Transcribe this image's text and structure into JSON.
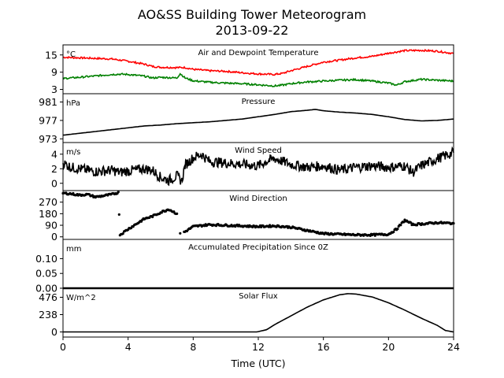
{
  "figure": {
    "title_line1": "AO&SS Building Tower Meteorogram",
    "title_line2": "2013-09-22",
    "xlabel": "Time (UTC)",
    "xticks": [
      0,
      4,
      8,
      12,
      16,
      20,
      24
    ],
    "xlim": [
      0,
      24
    ]
  },
  "chart_data": [
    {
      "type": "line",
      "title": "Air and Dewpoint Temperature",
      "unit": "°C",
      "ylim": [
        1.5,
        18.5
      ],
      "yticks": [
        3,
        9,
        15
      ],
      "series": [
        {
          "color": "#ff0000",
          "x": [
            0,
            1,
            2,
            3,
            3.5,
            4,
            5,
            5.5,
            6,
            7,
            7.5,
            8,
            9,
            10,
            11,
            12,
            13,
            13.5,
            14,
            15,
            16,
            17,
            18,
            19,
            20,
            21,
            22,
            23,
            24
          ],
          "y": [
            14.2,
            14,
            13.8,
            13.6,
            13.2,
            12.8,
            11.8,
            11,
            10.7,
            10.6,
            10.6,
            10,
            9.5,
            9.3,
            8.8,
            8.4,
            8.2,
            8.6,
            9.5,
            11,
            12.5,
            13.2,
            14,
            14.5,
            15.6,
            16.5,
            16.6,
            16.3,
            15.5
          ]
        },
        {
          "color": "#008000",
          "x": [
            0,
            1,
            2,
            3,
            3.5,
            4,
            5,
            5.5,
            6,
            7,
            7.2,
            7.5,
            8,
            9,
            10,
            11,
            12,
            13,
            13.5,
            14,
            15,
            16,
            17,
            18,
            19,
            20,
            20.5,
            21,
            22,
            23,
            24
          ],
          "y": [
            6.8,
            7.2,
            7.7,
            8.2,
            8.3,
            8.2,
            7.6,
            7,
            7.2,
            7,
            8.5,
            7,
            6,
            5.5,
            5.2,
            5,
            4.6,
            4.2,
            4.5,
            5,
            5.6,
            5.9,
            6.2,
            6.4,
            5.9,
            5.2,
            4.5,
            5.7,
            6.5,
            6.2,
            5.9
          ]
        }
      ]
    },
    {
      "type": "line",
      "title": "Pressure",
      "unit": "hPa",
      "ylim": [
        972.2,
        982.8
      ],
      "yticks": [
        973,
        977,
        981
      ],
      "series": [
        {
          "color": "#000000",
          "x": [
            0,
            1,
            2,
            3,
            4,
            5,
            6,
            7,
            8,
            9,
            10,
            11,
            12,
            13,
            14,
            15,
            15.5,
            16,
            17,
            18,
            19,
            20,
            21,
            22,
            23,
            24
          ],
          "y": [
            973.8,
            974.2,
            974.6,
            975,
            975.4,
            975.8,
            976,
            976.3,
            976.5,
            976.7,
            977,
            977.3,
            977.8,
            978.3,
            978.9,
            979.2,
            979.4,
            979.1,
            978.8,
            978.6,
            978.3,
            977.8,
            977.2,
            976.9,
            977,
            977.3
          ]
        }
      ]
    },
    {
      "type": "line",
      "title": "Wind Speed",
      "unit": "m/s",
      "ylim": [
        -1,
        5.6
      ],
      "yticks": [
        0,
        2,
        4
      ],
      "series": [
        {
          "color": "#000000",
          "x": [
            0,
            0.5,
            1,
            2,
            3,
            3.5,
            4,
            5,
            5.5,
            6,
            6.5,
            7,
            7.3,
            7.5,
            8,
            8.5,
            9,
            10,
            11,
            12,
            12.5,
            13,
            14,
            15,
            16,
            17,
            18,
            19,
            20,
            21,
            21.5,
            22,
            23,
            24
          ],
          "y": [
            2.8,
            2.2,
            2,
            1.6,
            1.8,
            1.5,
            1.7,
            2,
            1.8,
            0.8,
            0.4,
            1,
            0.3,
            2.5,
            3.5,
            4,
            3,
            2.8,
            2.6,
            2.4,
            3,
            3.4,
            2.6,
            2.2,
            2.4,
            1.8,
            2.2,
            2.4,
            2.2,
            2.4,
            1.5,
            2.4,
            3.4,
            4.2
          ]
        }
      ]
    },
    {
      "type": "scatter",
      "title": "Wind Direction",
      "ylim": [
        -20,
        360
      ],
      "yticks": [
        0,
        90,
        180,
        270
      ],
      "series": [
        {
          "color": "#000000",
          "x": [
            0,
            0.5,
            1,
            1.5,
            2,
            2.5,
            3,
            3.4,
            3.5,
            4,
            4.5,
            5,
            5.5,
            6,
            6.5,
            7,
            7.2,
            7.5,
            8,
            9,
            10,
            11,
            12,
            13,
            14,
            15,
            16,
            17,
            18,
            19,
            20,
            20.5,
            21,
            21.5,
            22,
            23,
            24
          ],
          "y": [
            340,
            335,
            325,
            330,
            310,
            320,
            330,
            345,
            15,
            60,
            100,
            140,
            160,
            190,
            215,
            180,
            30,
            40,
            80,
            95,
            90,
            85,
            80,
            85,
            75,
            50,
            25,
            20,
            15,
            15,
            20,
            60,
            130,
            95,
            100,
            110,
            105
          ]
        }
      ]
    },
    {
      "type": "line",
      "title": "Accumulated Precipitation Since 0Z",
      "unit": "mm",
      "ylim": [
        0,
        0.165
      ],
      "yticks": [
        0.0,
        0.05,
        0.1
      ],
      "ytick_labels": [
        "0.00",
        "0.05",
        "0.10"
      ],
      "series": [
        {
          "color": "#000000",
          "x": [
            0,
            24
          ],
          "y": [
            0,
            0
          ]
        }
      ]
    },
    {
      "type": "line",
      "title": "Solar Flux",
      "unit": "W/m^2",
      "ylim": [
        -70,
        600
      ],
      "yticks": [
        0,
        238,
        476
      ],
      "series": [
        {
          "color": "#000000",
          "x": [
            0,
            11.9,
            12,
            12.5,
            13,
            14,
            15,
            16,
            17,
            17.5,
            18,
            19,
            20,
            21,
            22,
            23,
            23.5,
            24
          ],
          "y": [
            0,
            0,
            5,
            30,
            100,
            220,
            340,
            440,
            510,
            525,
            520,
            480,
            400,
            300,
            190,
            90,
            20,
            0
          ]
        }
      ]
    }
  ]
}
